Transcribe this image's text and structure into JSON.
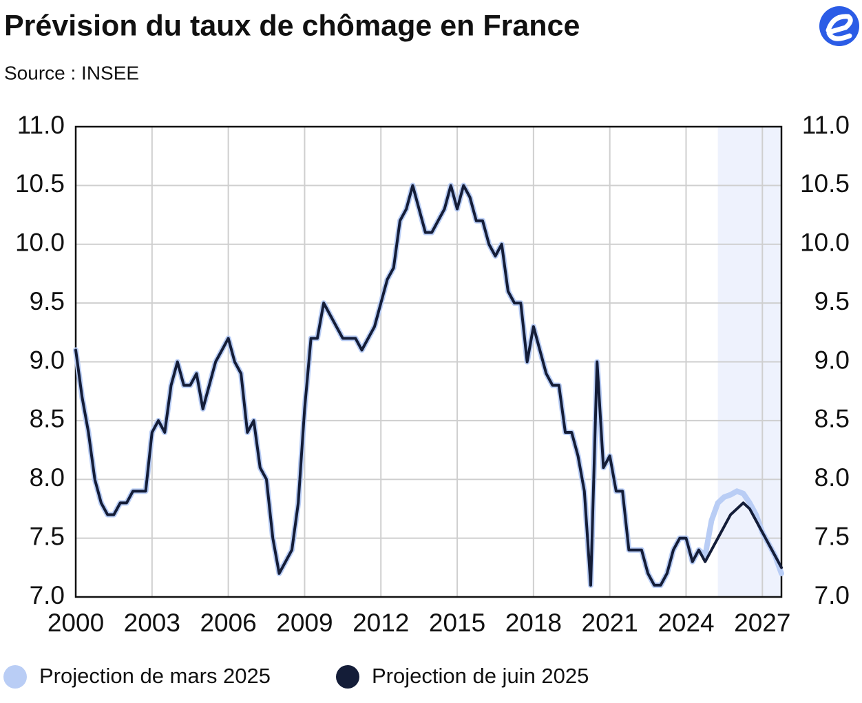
{
  "chart_data": {
    "type": "line",
    "title": "Prévision du taux de chômage en France",
    "subtitle": "Source : INSEE",
    "x": [
      2000,
      2000.25,
      2000.5,
      2000.75,
      2001,
      2001.25,
      2001.5,
      2001.75,
      2002,
      2002.25,
      2002.5,
      2002.75,
      2003,
      2003.25,
      2003.5,
      2003.75,
      2004,
      2004.25,
      2004.5,
      2004.75,
      2005,
      2005.25,
      2005.5,
      2005.75,
      2006,
      2006.25,
      2006.5,
      2006.75,
      2007,
      2007.25,
      2007.5,
      2007.75,
      2008,
      2008.25,
      2008.5,
      2008.75,
      2009,
      2009.25,
      2009.5,
      2009.75,
      2010,
      2010.25,
      2010.5,
      2010.75,
      2011,
      2011.25,
      2011.5,
      2011.75,
      2012,
      2012.25,
      2012.5,
      2012.75,
      2013,
      2013.25,
      2013.5,
      2013.75,
      2014,
      2014.25,
      2014.5,
      2014.75,
      2015,
      2015.25,
      2015.5,
      2015.75,
      2016,
      2016.25,
      2016.5,
      2016.75,
      2017,
      2017.25,
      2017.5,
      2017.75,
      2018,
      2018.25,
      2018.5,
      2018.75,
      2019,
      2019.25,
      2019.5,
      2019.75,
      2020,
      2020.25,
      2020.5,
      2020.75,
      2021,
      2021.25,
      2021.5,
      2021.75,
      2022,
      2022.25,
      2022.5,
      2022.75,
      2023,
      2023.25,
      2023.5,
      2023.75,
      2024,
      2024.25,
      2024.5,
      2024.75,
      2025,
      2025.25,
      2025.5,
      2025.75,
      2026,
      2026.25,
      2026.5,
      2026.75,
      2027,
      2027.25,
      2027.5,
      2027.75
    ],
    "series": [
      {
        "name": "Projection de mars 2025",
        "color": "#b9cdf5",
        "values": [
          9.1,
          8.7,
          8.4,
          8.0,
          7.8,
          7.7,
          7.7,
          7.8,
          7.8,
          7.9,
          7.9,
          7.9,
          8.4,
          8.5,
          8.4,
          8.8,
          9.0,
          8.8,
          8.8,
          8.9,
          8.6,
          8.8,
          9.0,
          9.1,
          9.2,
          9.0,
          8.9,
          8.4,
          8.5,
          8.1,
          8.0,
          7.5,
          7.2,
          7.3,
          7.4,
          7.8,
          8.6,
          9.2,
          9.2,
          9.5,
          9.4,
          9.3,
          9.2,
          9.2,
          9.2,
          9.1,
          9.2,
          9.3,
          9.5,
          9.7,
          9.8,
          10.2,
          10.3,
          10.5,
          10.3,
          10.1,
          10.1,
          10.2,
          10.3,
          10.5,
          10.3,
          10.5,
          10.4,
          10.2,
          10.2,
          10.0,
          9.9,
          10.0,
          9.6,
          9.5,
          9.5,
          9.0,
          9.3,
          9.1,
          8.9,
          8.8,
          8.8,
          8.4,
          8.4,
          8.2,
          7.9,
          7.1,
          9.0,
          8.1,
          8.2,
          7.9,
          7.9,
          7.4,
          7.4,
          7.4,
          7.2,
          7.1,
          7.1,
          7.2,
          7.4,
          7.5,
          7.5,
          7.3,
          7.4,
          7.35,
          7.65,
          7.8,
          7.85,
          7.87,
          7.9,
          7.88,
          7.8,
          7.7,
          7.55,
          7.45,
          7.35,
          7.2
        ]
      },
      {
        "name": "Projection de juin 2025",
        "color": "#141d38",
        "values": [
          9.1,
          8.7,
          8.4,
          8.0,
          7.8,
          7.7,
          7.7,
          7.8,
          7.8,
          7.9,
          7.9,
          7.9,
          8.4,
          8.5,
          8.4,
          8.8,
          9.0,
          8.8,
          8.8,
          8.9,
          8.6,
          8.8,
          9.0,
          9.1,
          9.2,
          9.0,
          8.9,
          8.4,
          8.5,
          8.1,
          8.0,
          7.5,
          7.2,
          7.3,
          7.4,
          7.8,
          8.6,
          9.2,
          9.2,
          9.5,
          9.4,
          9.3,
          9.2,
          9.2,
          9.2,
          9.1,
          9.2,
          9.3,
          9.5,
          9.7,
          9.8,
          10.2,
          10.3,
          10.5,
          10.3,
          10.1,
          10.1,
          10.2,
          10.3,
          10.5,
          10.3,
          10.5,
          10.4,
          10.2,
          10.2,
          10.0,
          9.9,
          10.0,
          9.6,
          9.5,
          9.5,
          9.0,
          9.3,
          9.1,
          8.9,
          8.8,
          8.8,
          8.4,
          8.4,
          8.2,
          7.9,
          7.1,
          9.0,
          8.1,
          8.2,
          7.9,
          7.9,
          7.4,
          7.4,
          7.4,
          7.2,
          7.1,
          7.1,
          7.2,
          7.4,
          7.5,
          7.5,
          7.3,
          7.4,
          7.3,
          7.4,
          7.5,
          7.6,
          7.7,
          7.75,
          7.8,
          7.75,
          7.65,
          7.55,
          7.45,
          7.35,
          7.25
        ]
      }
    ],
    "xlim": [
      2000,
      2027.75
    ],
    "xticks": [
      2000,
      2003,
      2006,
      2009,
      2012,
      2015,
      2018,
      2021,
      2024,
      2027
    ],
    "ylim": [
      7.0,
      11.0
    ],
    "yticks": [
      {
        "value": 7,
        "label": "7.0"
      },
      7.5,
      {
        "value": 8,
        "label": "8.0"
      },
      8.5,
      {
        "value": 9,
        "label": "9.0"
      },
      9.5,
      {
        "value": 10,
        "label": "10.0"
      },
      10.5,
      {
        "value": 11,
        "label": "11.0"
      }
    ],
    "y2lim": [
      7.0,
      11.0
    ],
    "y2ticks": [
      {
        "value": 7,
        "label": "7.0"
      },
      7.5,
      {
        "value": 8,
        "label": "8.0"
      },
      8.5,
      {
        "value": 9,
        "label": "9.0"
      },
      9.5,
      {
        "value": 10,
        "label": "10.0"
      },
      10.5,
      {
        "value": 11,
        "label": "11.0"
      }
    ],
    "grid": true,
    "shaded_span": {
      "from": 2025.25,
      "to": 2027.75,
      "color": "#eef2fd"
    },
    "legend": "bottom"
  }
}
